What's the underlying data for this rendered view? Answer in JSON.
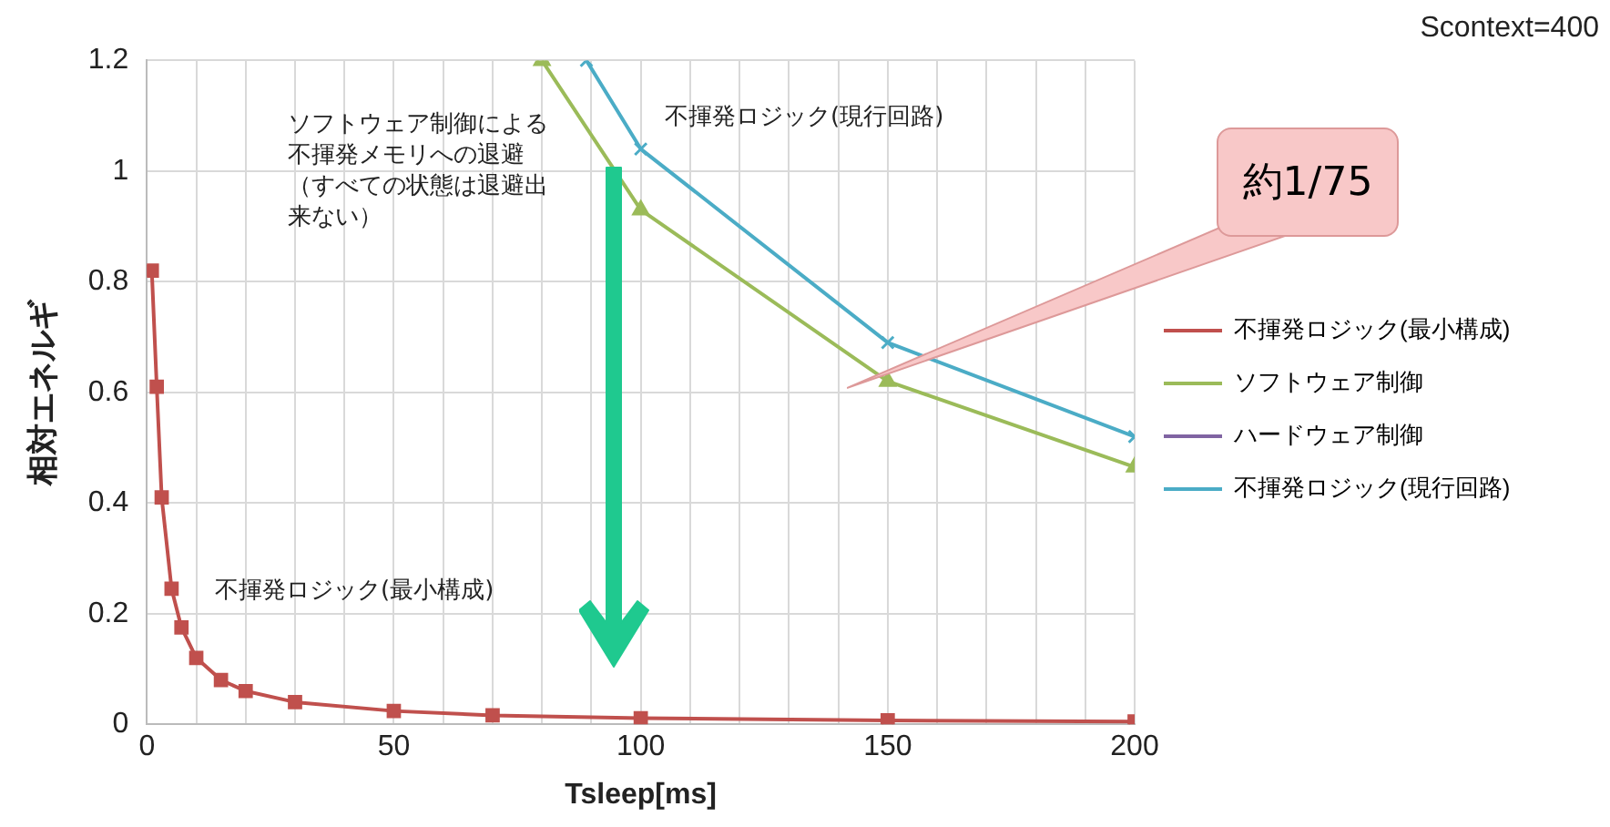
{
  "chart_data": {
    "type": "line",
    "title": "Scontext=400",
    "xlabel": "Tsleep[ms]",
    "ylabel": "相対エネルギ",
    "xlim": [
      0,
      200
    ],
    "xticks": [
      0,
      {
        "value": 10,
        "label": null
      },
      {
        "value": 20,
        "label": null
      },
      {
        "value": 30,
        "label": null
      },
      {
        "value": 40,
        "label": null
      },
      50,
      {
        "value": 60,
        "label": null
      },
      {
        "value": 70,
        "label": null
      },
      {
        "value": 80,
        "label": null
      },
      {
        "value": 90,
        "label": null
      },
      100,
      {
        "value": 110,
        "label": null
      },
      {
        "value": 120,
        "label": null
      },
      {
        "value": 130,
        "label": null
      },
      {
        "value": 140,
        "label": null
      },
      150,
      {
        "value": 160,
        "label": null
      },
      {
        "value": 170,
        "label": null
      },
      {
        "value": 180,
        "label": null
      },
      {
        "value": 190,
        "label": null
      },
      200
    ],
    "ylim": [
      0,
      1.2
    ],
    "yticks": [
      0,
      0.2,
      0.4,
      0.6,
      0.8,
      1,
      1.2
    ],
    "grid": true,
    "legend": "right",
    "series": [
      {
        "name": "不揮発ロジック(最小構成)",
        "color": "#c0504d",
        "marker": "square",
        "x": [
          1,
          2,
          3,
          5,
          7,
          10,
          15,
          20,
          30,
          50,
          70,
          100,
          150,
          200
        ],
        "values": [
          0.82,
          0.61,
          0.41,
          0.245,
          0.175,
          0.12,
          0.08,
          0.06,
          0.04,
          0.024,
          0.016,
          0.011,
          0.007,
          0.005
        ]
      },
      {
        "name": "ソフトウェア制御",
        "color": "#9bbb59",
        "marker": "triangle",
        "x": [
          80,
          100,
          150,
          200
        ],
        "values": [
          1.2,
          0.93,
          0.62,
          0.465
        ]
      },
      {
        "name": "ハードウェア制御",
        "color": "#8064a2",
        "marker": "cross"
      },
      {
        "name": "不揮発ロジック(現行回路)",
        "color": "#4bacc6",
        "marker": "cross",
        "x": [
          89,
          100,
          150,
          200
        ],
        "values": [
          1.2,
          1.04,
          0.69,
          0.52
        ]
      }
    ],
    "annotations": [
      "ソフトウェア制御による不揮発メモリへの退避（すべての状態は退避出来ない）",
      "不揮発ロジック(最小構成)",
      "不揮発ロジック(現行回路)",
      "約1/75"
    ]
  }
}
